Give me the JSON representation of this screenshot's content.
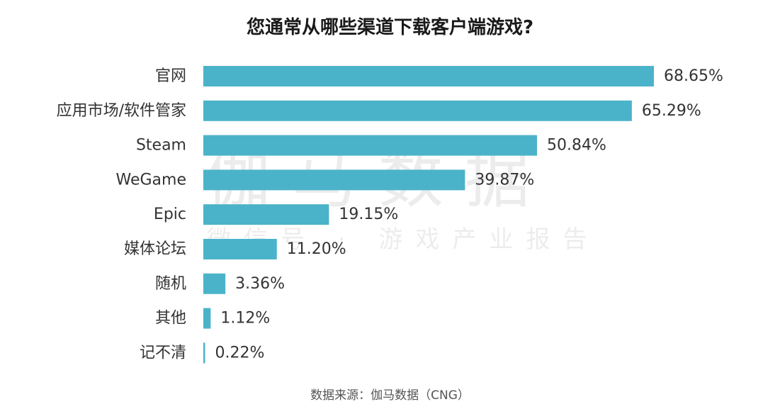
{
  "chart_data": {
    "type": "bar",
    "orientation": "horizontal",
    "title": "您通常从哪些渠道下载客户端游戏?",
    "categories": [
      "官网",
      "应用市场/软件管家",
      "Steam",
      "WeGame",
      "Epic",
      "媒体论坛",
      "随机",
      "其他",
      "记不清"
    ],
    "values": [
      68.65,
      65.29,
      50.84,
      39.87,
      19.15,
      11.2,
      3.36,
      1.12,
      0.22
    ],
    "value_labels": [
      "68.65%",
      "65.29%",
      "50.84%",
      "39.87%",
      "19.15%",
      "11.20%",
      "3.36%",
      "1.12%",
      "0.22%"
    ],
    "unit": "%",
    "xlim": [
      0,
      100
    ],
    "grid": false,
    "legend": "none",
    "bar_color": "#4bb3c9"
  },
  "watermark": {
    "main": "伽马数据",
    "sub": "微信号 · 游戏产业报告"
  },
  "source": "数据来源：伽马数据（CNG）"
}
